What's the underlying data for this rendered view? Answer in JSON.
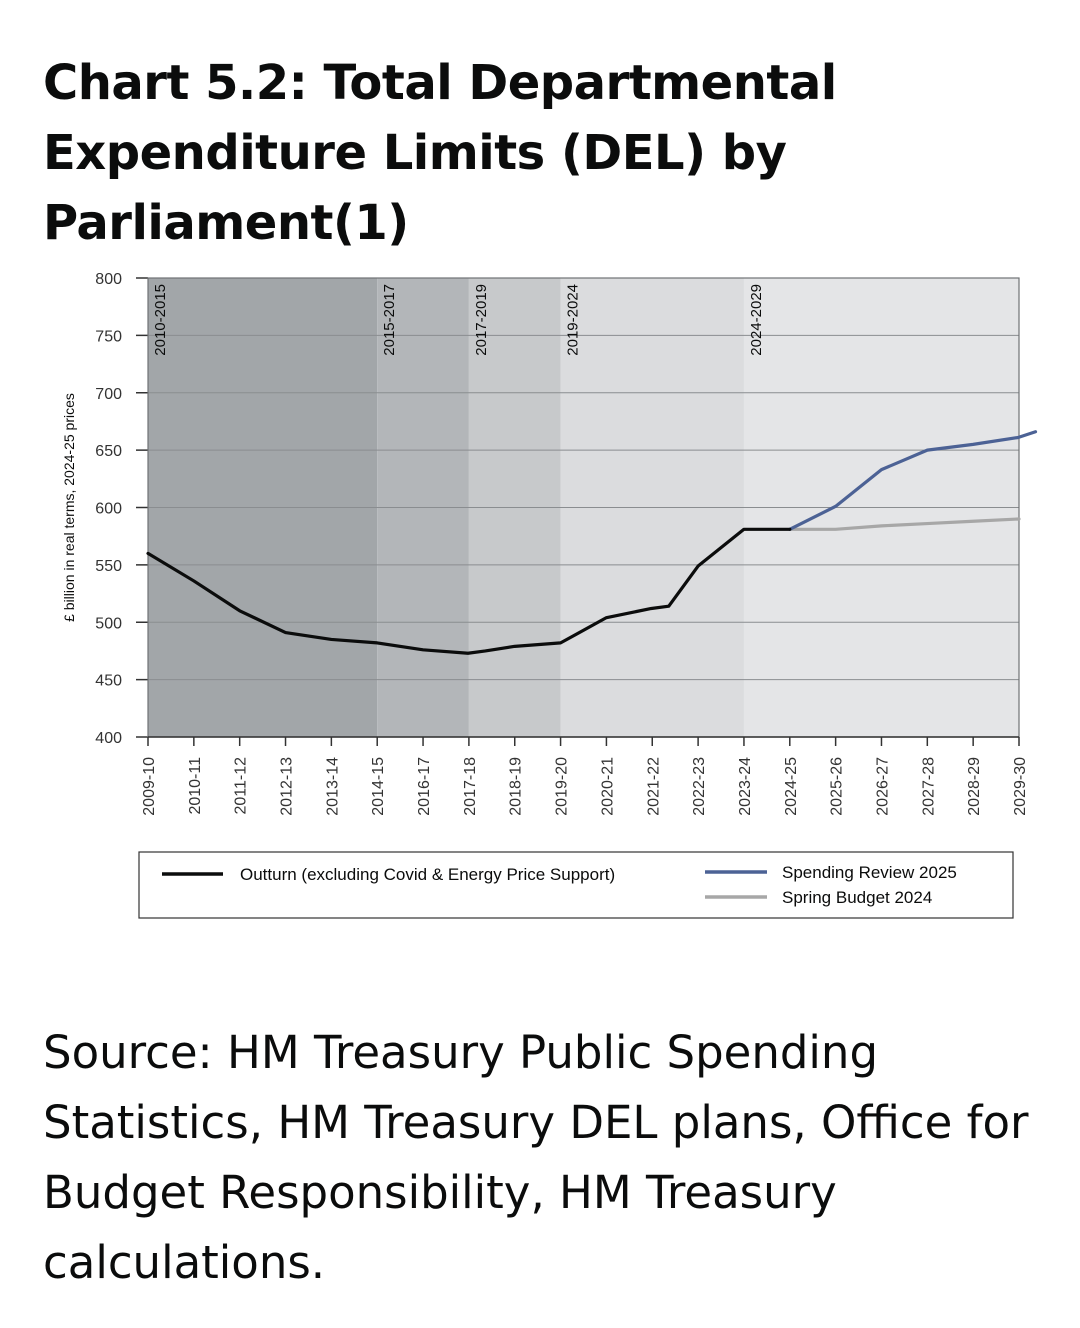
{
  "title": "Chart 5.2: Total Departmental Expenditure Limits (DEL) by Parliament(1)",
  "source": "Source: HM Treasury Public Spending Statistics, HM Treasury DEL plans, Office for Budget Responsibility, HM Treasury calculations.",
  "chart_data": {
    "type": "line",
    "ylabel": "£ billion in real terms, 2024-25 prices",
    "ylim": [
      400,
      800
    ],
    "yticks": [
      400,
      450,
      500,
      550,
      600,
      650,
      700,
      750,
      800
    ],
    "grid": true,
    "legend_position": "bottom",
    "categories": [
      "2009-10",
      "2010-11",
      "2011-12",
      "2012-13",
      "2013-14",
      "2014-15",
      "2016-17",
      "2017-18",
      "2018-19",
      "2019-20",
      "2020-21",
      "2021-22",
      "2022-23",
      "2023-24",
      "2024-25",
      "2025-26",
      "2026-27",
      "2027-28",
      "2028-29",
      "2029-30"
    ],
    "parliaments": [
      {
        "label": "2010-2015",
        "start": "2009-10",
        "end": "2014-15",
        "color": "#a2a6a9"
      },
      {
        "label": "2015-2017",
        "start": "2014-15",
        "end": "2017-18",
        "color": "#b3b6b9"
      },
      {
        "label": "2017-2019",
        "start": "2017-18",
        "end": "2019-20",
        "color": "#c7c9cb"
      },
      {
        "label": "2019-2024",
        "start": "2019-20",
        "end": "2023-24",
        "color": "#dbdcde"
      },
      {
        "label": "2024-2029",
        "start": "2023-24",
        "end": "2029-30",
        "color": "#e4e5e7"
      }
    ],
    "series": [
      {
        "name": "Outturn (excluding Covid & Energy Price Support)",
        "color": "#0b0c0c",
        "points": [
          [
            "2009-10",
            560
          ],
          [
            "2010-11",
            536
          ],
          [
            "2011-12",
            510
          ],
          [
            "2012-13",
            491
          ],
          [
            "2013-14",
            485
          ],
          [
            "2014-15",
            482
          ],
          [
            "2016-17",
            476
          ],
          [
            "2017-18",
            473
          ],
          [
            "2017-18",
            475
          ],
          [
            "2018-19",
            479
          ],
          [
            "2019-20",
            482
          ],
          [
            "2020-21",
            504
          ],
          [
            "2021-22",
            512
          ],
          [
            "2021-22",
            514
          ],
          [
            "2022-23",
            549
          ],
          [
            "2023-24",
            581
          ],
          [
            "2024-25",
            581
          ]
        ]
      },
      {
        "name": "Spending Review 2025",
        "color": "#4c6295",
        "points": [
          [
            "2024-25",
            581
          ],
          [
            "2025-26",
            601
          ],
          [
            "2026-27",
            633
          ],
          [
            "2027-28",
            650
          ],
          [
            "2028-29",
            655
          ],
          [
            "2029-30",
            661
          ],
          [
            "2029-30",
            666
          ]
        ]
      },
      {
        "name": "Spring Budget 2024",
        "color": "#a7a7a7",
        "points": [
          [
            "2024-25",
            581
          ],
          [
            "2025-26",
            581
          ],
          [
            "2026-27",
            584
          ],
          [
            "2027-28",
            586
          ],
          [
            "2028-29",
            588
          ],
          [
            "2029-30",
            590
          ]
        ]
      }
    ]
  }
}
